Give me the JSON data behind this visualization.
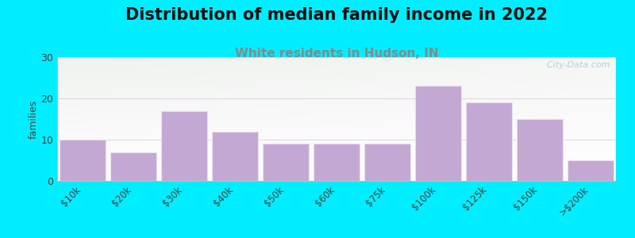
{
  "title": "Distribution of median family income in 2022",
  "subtitle": "White residents in Hudson, IN",
  "categories": [
    "$10k",
    "$20k",
    "$30k",
    "$40k",
    "$50k",
    "$60k",
    "$75k",
    "$100k",
    "$125k",
    "$150k",
    ">$200k"
  ],
  "values": [
    10,
    7,
    17,
    12,
    9,
    9,
    9,
    23,
    19,
    15,
    5
  ],
  "bar_color": "#c4a8d4",
  "bar_edge_color": "#e8e0f0",
  "background_outer": "#00eeff",
  "ylim": [
    0,
    30
  ],
  "yticks": [
    0,
    10,
    20,
    30
  ],
  "ylabel": "families",
  "title_fontsize": 15,
  "subtitle_fontsize": 11,
  "subtitle_color": "#888888",
  "watermark": "  City-Data.com",
  "watermark_color": "#b0c8d0"
}
